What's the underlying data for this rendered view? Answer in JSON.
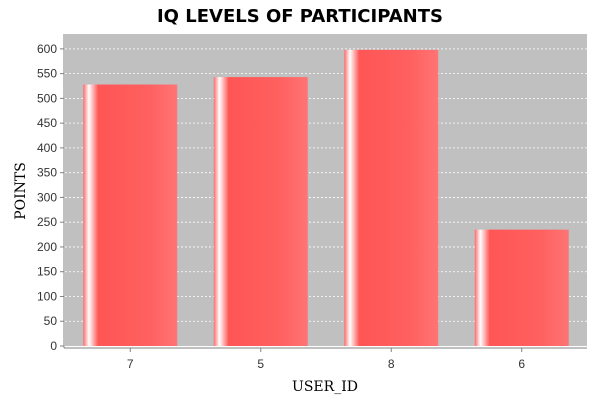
{
  "chart_data": {
    "type": "bar",
    "title": "IQ LEVELS OF PARTICIPANTS",
    "xlabel": "USER_ID",
    "ylabel": "POINTS",
    "categories": [
      "7",
      "5",
      "8",
      "6"
    ],
    "values": [
      528,
      543,
      598,
      235
    ],
    "ylim": [
      0,
      630
    ],
    "yticks": [
      0,
      50,
      100,
      150,
      200,
      250,
      300,
      350,
      400,
      450,
      500,
      550,
      600
    ],
    "grid": true,
    "legend": "none",
    "colors": {
      "plot_background": "#c0c0c0",
      "bar": "#ff5a5a",
      "bar_highlight": "#ffffff",
      "grid": "#ffffff"
    }
  }
}
